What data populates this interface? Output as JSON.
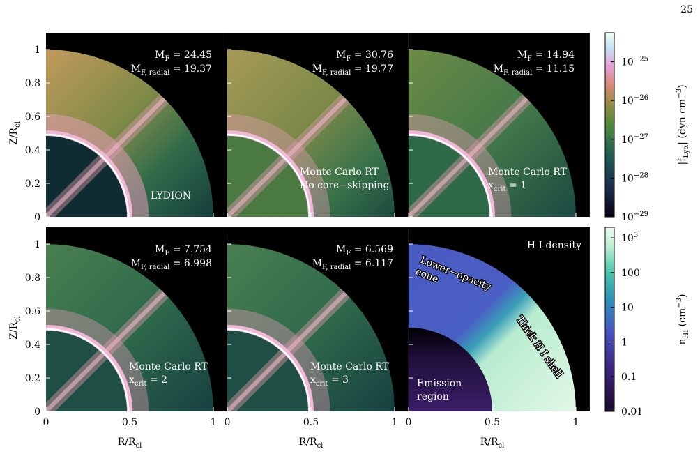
{
  "page_number": "25",
  "axes": {
    "xlim": [
      0,
      1.083
    ],
    "ylim": [
      0,
      1.1
    ],
    "xticks": [
      0,
      0.5,
      1
    ],
    "yticks": [
      0,
      0.2,
      0.4,
      0.6,
      0.8,
      1
    ],
    "xlabel": [
      {
        "text": "R/R"
      },
      {
        "text": "cl",
        "shift": "sub"
      }
    ],
    "ylabel": [
      {
        "text": "Z/R"
      },
      {
        "text": "cl",
        "shift": "sub"
      }
    ]
  },
  "panels": [
    {
      "mass": [
        [
          {
            "text": "M"
          },
          {
            "text": "F",
            "shift": "sub"
          },
          {
            "text": " = 24.45"
          }
        ],
        [
          {
            "text": "M"
          },
          {
            "text": "F, radial",
            "shift": "sub"
          },
          {
            "text": " = 19.37"
          }
        ]
      ],
      "method": [
        [
          {
            "text": "LYDION"
          }
        ]
      ]
    },
    {
      "mass": [
        [
          {
            "text": "M"
          },
          {
            "text": "F",
            "shift": "sub"
          },
          {
            "text": " = 30.76"
          }
        ],
        [
          {
            "text": "M"
          },
          {
            "text": "F, radial",
            "shift": "sub"
          },
          {
            "text": " = 19.77"
          }
        ]
      ],
      "method": [
        [
          {
            "text": "Monte Carlo RT"
          }
        ],
        [
          {
            "text": "No core−skipping"
          }
        ]
      ]
    },
    {
      "mass": [
        [
          {
            "text": "M"
          },
          {
            "text": "F",
            "shift": "sub"
          },
          {
            "text": " = 14.94"
          }
        ],
        [
          {
            "text": "M"
          },
          {
            "text": "F, radial",
            "shift": "sub"
          },
          {
            "text": " = 11.15"
          }
        ]
      ],
      "method": [
        [
          {
            "text": "Monte Carlo RT"
          }
        ],
        [
          {
            "text": "x"
          },
          {
            "text": "crit",
            "shift": "sub"
          },
          {
            "text": " = 1"
          }
        ]
      ]
    },
    {
      "mass": [
        [
          {
            "text": "M"
          },
          {
            "text": "F",
            "shift": "sub"
          },
          {
            "text": " = 7.754"
          }
        ],
        [
          {
            "text": "M"
          },
          {
            "text": "F, radial",
            "shift": "sub"
          },
          {
            "text": " = 6.998"
          }
        ]
      ],
      "method": [
        [
          {
            "text": "Monte Carlo RT"
          }
        ],
        [
          {
            "text": "x"
          },
          {
            "text": "crit",
            "shift": "sub"
          },
          {
            "text": " = 2"
          }
        ]
      ]
    },
    {
      "mass": [
        [
          {
            "text": "M"
          },
          {
            "text": "F",
            "shift": "sub"
          },
          {
            "text": " = 6.569"
          }
        ],
        [
          {
            "text": "M"
          },
          {
            "text": "F, radial",
            "shift": "sub"
          },
          {
            "text": " = 6.117"
          }
        ]
      ],
      "method": [
        [
          {
            "text": "Monte Carlo RT"
          }
        ],
        [
          {
            "text": "x"
          },
          {
            "text": "crit",
            "shift": "sub"
          },
          {
            "text": " = 3"
          }
        ]
      ]
    }
  ],
  "density_panel": {
    "title": "H I density",
    "cone": [
      "Lower−opacity",
      "cone"
    ],
    "shell": "Thick H I shell",
    "emission": [
      "Emission",
      "region"
    ]
  },
  "colorbars": [
    {
      "clim": [
        1e-29,
        5.6e-25
      ],
      "log": true,
      "label": [
        {
          "text": "|f"
        },
        {
          "text": "Lyα",
          "shift": "sub"
        },
        {
          "text": "| (dyn cm"
        },
        {
          "text": "−3",
          "shift": "sup"
        },
        {
          "text": ")"
        }
      ],
      "ticks": [
        {
          "value": 1e-29,
          "label": [
            {
              "text": "10"
            },
            {
              "text": "−29",
              "shift": "sup"
            }
          ]
        },
        {
          "value": 1e-28,
          "label": [
            {
              "text": "10"
            },
            {
              "text": "−28",
              "shift": "sup"
            }
          ]
        },
        {
          "value": 1e-27,
          "label": [
            {
              "text": "10"
            },
            {
              "text": "−27",
              "shift": "sup"
            }
          ]
        },
        {
          "value": 1e-26,
          "label": [
            {
              "text": "10"
            },
            {
              "text": "−26",
              "shift": "sup"
            }
          ]
        },
        {
          "value": 1e-25,
          "label": [
            {
              "text": "10"
            },
            {
              "text": "−25",
              "shift": "sup"
            }
          ]
        }
      ]
    },
    {
      "clim": [
        0.01,
        2000
      ],
      "log": true,
      "label": [
        {
          "text": "n"
        },
        {
          "text": "HI",
          "shift": "sub"
        },
        {
          "text": " (cm"
        },
        {
          "text": "−3",
          "shift": "sup"
        },
        {
          "text": ")"
        }
      ],
      "ticks": [
        {
          "value": 0.01,
          "label": [
            {
              "text": "0.01"
            }
          ]
        },
        {
          "value": 0.1,
          "label": [
            {
              "text": "0.1"
            }
          ]
        },
        {
          "value": 1,
          "label": [
            {
              "text": "1"
            }
          ]
        },
        {
          "value": 10,
          "label": [
            {
              "text": "10"
            }
          ]
        },
        {
          "value": 100,
          "label": [
            {
              "text": "100"
            }
          ]
        },
        {
          "value": 1000,
          "label": [
            {
              "text": "10"
            },
            {
              "text": "3",
              "shift": "sup"
            }
          ]
        }
      ]
    }
  ]
}
